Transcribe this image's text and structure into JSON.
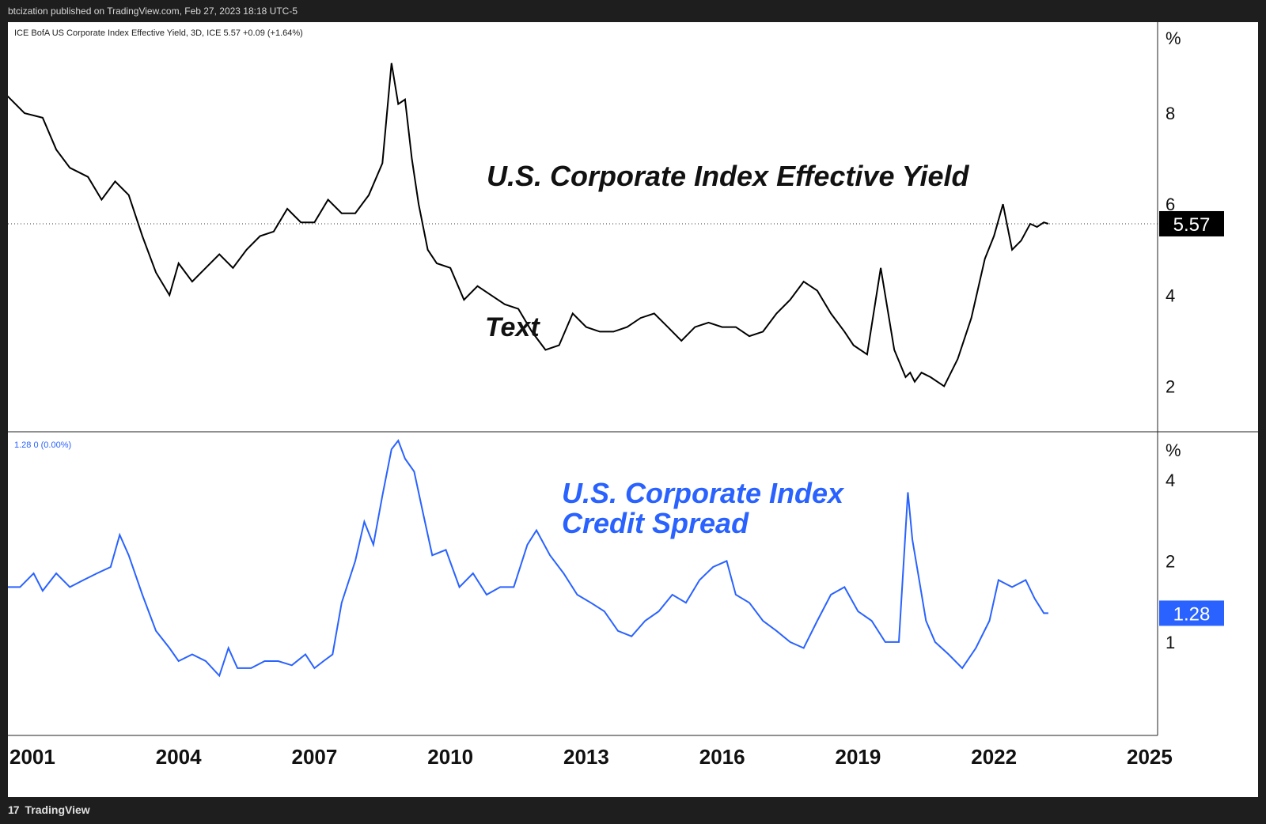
{
  "header": {
    "published": "btcization published on TradingView.com, Feb 27, 2023 18:18 UTC-5"
  },
  "footer": {
    "brand": "TradingView",
    "logo_icon": "tradingview-logo-icon"
  },
  "chart_data": [
    {
      "type": "line",
      "title": "U.S. Corporate Index Effective Yield",
      "legend": "ICE BofA US Corporate Index Effective Yield, 3D, ICE  5.57  +0.09 (+1.64%)",
      "annotation": "Text",
      "unit": "%",
      "last_value": "5.57",
      "ylim": [
        1.0,
        10.0
      ],
      "yticks": [
        "8",
        "6",
        "4",
        "2"
      ],
      "color": "#000000",
      "x": [
        2000.2,
        2000.6,
        2001.0,
        2001.3,
        2001.6,
        2002.0,
        2002.3,
        2002.6,
        2002.9,
        2003.2,
        2003.5,
        2003.8,
        2004.0,
        2004.3,
        2004.6,
        2004.9,
        2005.2,
        2005.5,
        2005.8,
        2006.1,
        2006.4,
        2006.7,
        2007.0,
        2007.3,
        2007.6,
        2007.9,
        2008.2,
        2008.5,
        2008.7,
        2008.85,
        2009.0,
        2009.15,
        2009.3,
        2009.5,
        2009.7,
        2010.0,
        2010.3,
        2010.6,
        2010.9,
        2011.2,
        2011.5,
        2011.8,
        2012.1,
        2012.4,
        2012.7,
        2013.0,
        2013.3,
        2013.6,
        2013.9,
        2014.2,
        2014.5,
        2014.8,
        2015.1,
        2015.4,
        2015.7,
        2016.0,
        2016.3,
        2016.6,
        2016.9,
        2017.2,
        2017.5,
        2017.8,
        2018.1,
        2018.4,
        2018.7,
        2018.9,
        2019.2,
        2019.5,
        2019.8,
        2020.05,
        2020.15,
        2020.25,
        2020.4,
        2020.6,
        2020.9,
        2021.2,
        2021.5,
        2021.8,
        2022.0,
        2022.2,
        2022.4,
        2022.6,
        2022.8,
        2022.95,
        2023.1,
        2023.2
      ],
      "values": [
        8.4,
        8.0,
        7.9,
        7.2,
        6.8,
        6.6,
        6.1,
        6.5,
        6.2,
        5.3,
        4.5,
        4.0,
        4.7,
        4.3,
        4.6,
        4.9,
        4.6,
        5.0,
        5.3,
        5.4,
        5.9,
        5.6,
        5.6,
        6.1,
        5.8,
        5.8,
        6.2,
        6.9,
        9.1,
        8.2,
        8.3,
        7.0,
        6.0,
        5.0,
        4.7,
        4.6,
        3.9,
        4.2,
        4.0,
        3.8,
        3.7,
        3.2,
        2.8,
        2.9,
        3.6,
        3.3,
        3.2,
        3.2,
        3.3,
        3.5,
        3.6,
        3.3,
        3.0,
        3.3,
        3.4,
        3.3,
        3.3,
        3.1,
        3.2,
        3.6,
        3.9,
        4.3,
        4.1,
        3.6,
        3.2,
        2.9,
        2.7,
        4.6,
        2.8,
        2.2,
        2.3,
        2.1,
        2.3,
        2.2,
        2.0,
        2.6,
        3.5,
        4.8,
        5.3,
        6.0,
        5.0,
        5.2,
        5.57,
        5.5,
        5.6,
        5.57
      ]
    },
    {
      "type": "line",
      "title": "U.S. Corporate Index Credit Spread",
      "title_lines": [
        "U.S. Corporate Index",
        "Credit Spread"
      ],
      "legend": "1.28  0 (0.00%)",
      "unit": "%",
      "last_value": "1.28",
      "ylim": [
        0.45,
        6.0
      ],
      "yticks": [
        "4",
        "2",
        "1"
      ],
      "color": "#2962ff",
      "x": [
        2000.2,
        2000.5,
        2000.8,
        2001.0,
        2001.3,
        2001.6,
        2001.9,
        2002.2,
        2002.5,
        2002.7,
        2002.9,
        2003.2,
        2003.5,
        2003.8,
        2004.0,
        2004.3,
        2004.6,
        2004.9,
        2005.1,
        2005.3,
        2005.6,
        2005.9,
        2006.2,
        2006.5,
        2006.8,
        2007.0,
        2007.2,
        2007.4,
        2007.6,
        2007.9,
        2008.1,
        2008.3,
        2008.5,
        2008.7,
        2008.85,
        2009.0,
        2009.2,
        2009.4,
        2009.6,
        2009.9,
        2010.2,
        2010.5,
        2010.8,
        2011.1,
        2011.4,
        2011.7,
        2011.9,
        2012.2,
        2012.5,
        2012.8,
        2013.1,
        2013.4,
        2013.7,
        2014.0,
        2014.3,
        2014.6,
        2014.9,
        2015.2,
        2015.5,
        2015.8,
        2016.1,
        2016.3,
        2016.6,
        2016.9,
        2017.2,
        2017.5,
        2017.8,
        2018.1,
        2018.4,
        2018.7,
        2019.0,
        2019.3,
        2019.6,
        2019.9,
        2020.1,
        2020.2,
        2020.35,
        2020.5,
        2020.7,
        2021.0,
        2021.3,
        2021.6,
        2021.9,
        2022.1,
        2022.4,
        2022.7,
        2022.9,
        2023.1,
        2023.2
      ],
      "values": [
        1.6,
        1.6,
        1.8,
        1.55,
        1.8,
        1.6,
        1.7,
        1.8,
        1.9,
        2.5,
        2.1,
        1.5,
        1.1,
        0.95,
        0.85,
        0.9,
        0.85,
        0.75,
        0.95,
        0.8,
        0.8,
        0.85,
        0.85,
        0.82,
        0.9,
        0.8,
        0.85,
        0.9,
        1.4,
        2.0,
        2.8,
        2.3,
        3.5,
        5.2,
        5.6,
        4.8,
        4.3,
        3.0,
        2.1,
        2.2,
        1.6,
        1.8,
        1.5,
        1.6,
        1.6,
        2.3,
        2.6,
        2.1,
        1.8,
        1.5,
        1.4,
        1.3,
        1.1,
        1.05,
        1.2,
        1.3,
        1.5,
        1.4,
        1.7,
        1.9,
        2.0,
        1.5,
        1.4,
        1.2,
        1.1,
        1.0,
        0.95,
        1.2,
        1.5,
        1.6,
        1.3,
        1.2,
        1.0,
        1.0,
        3.6,
        2.4,
        1.7,
        1.2,
        1.0,
        0.9,
        0.8,
        0.95,
        1.2,
        1.7,
        1.6,
        1.7,
        1.45,
        1.28,
        1.28
      ]
    }
  ],
  "x_axis": {
    "labels": [
      "2001",
      "2004",
      "2007",
      "2010",
      "2013",
      "2016",
      "2019",
      "2022",
      "2025"
    ],
    "years": [
      2001,
      2004,
      2007,
      2010,
      2013,
      2016,
      2019,
      2022,
      2025
    ]
  }
}
